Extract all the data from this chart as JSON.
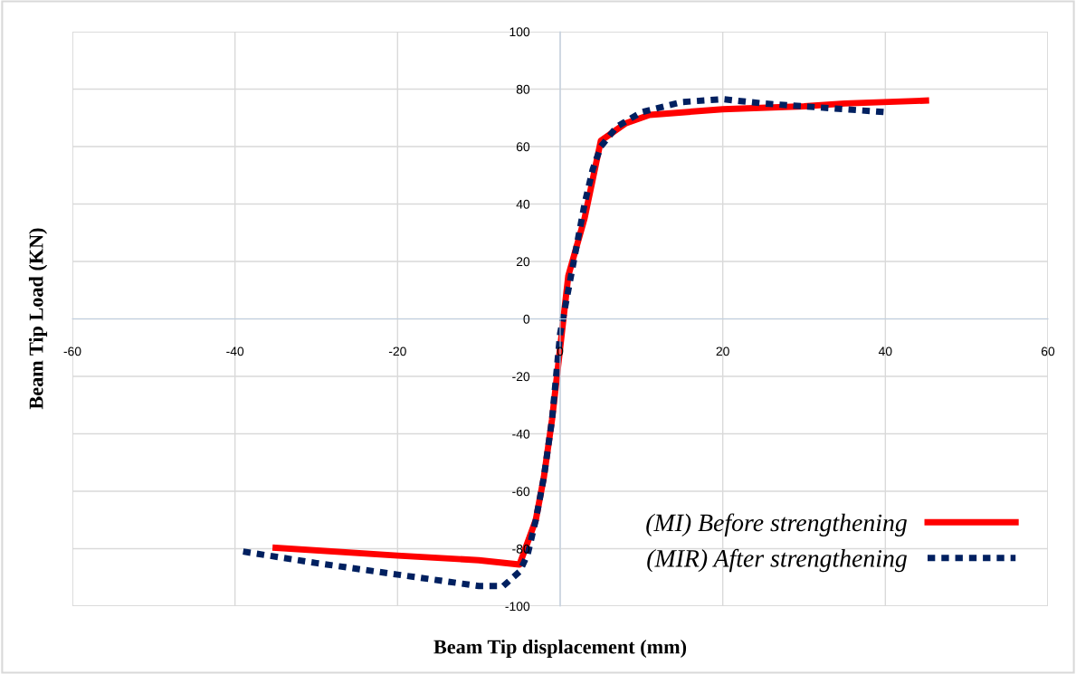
{
  "chart_data": {
    "type": "line",
    "xlabel": "Beam Tip displacement (mm)",
    "ylabel": "Beam Tip Load (KN)",
    "xlim": [
      -60,
      60
    ],
    "xticks": [
      -60,
      -40,
      -20,
      0,
      20,
      40,
      60
    ],
    "ylim": [
      -100,
      100
    ],
    "yticks": [
      -100,
      -80,
      -60,
      -40,
      -20,
      0,
      20,
      40,
      60,
      80,
      100
    ],
    "grid": true,
    "legend": "bottom right",
    "marker": "none",
    "series": [
      {
        "name": "(MI) Before strengthening",
        "color": "#ff0000",
        "line_style": "solid",
        "x": [
          -35,
          -20,
          -10,
          -5,
          -3,
          -2,
          -1,
          0,
          1,
          3,
          5,
          8,
          11,
          20,
          30,
          35,
          45
        ],
        "values": [
          -79.7,
          -82.4,
          -84,
          -85.5,
          -70,
          -55,
          -35,
          -10,
          15,
          35,
          62,
          68,
          71,
          73,
          74,
          75,
          76
        ]
      },
      {
        "name": "(MIR) After strengthening",
        "color": "#002060",
        "line_style": "dotted",
        "x": [
          -39,
          -30,
          -20,
          -10,
          -7,
          -5,
          -4,
          -3,
          -2,
          -1,
          0,
          1,
          2,
          3,
          4,
          5,
          7,
          10,
          15,
          20,
          25,
          30,
          35,
          40
        ],
        "values": [
          -81,
          -85,
          -89,
          -93,
          -93,
          -88,
          -82,
          -70,
          -55,
          -35,
          -5,
          10,
          25,
          40,
          52,
          60,
          67,
          72,
          75.5,
          76.5,
          75,
          74,
          73,
          72
        ]
      }
    ]
  }
}
